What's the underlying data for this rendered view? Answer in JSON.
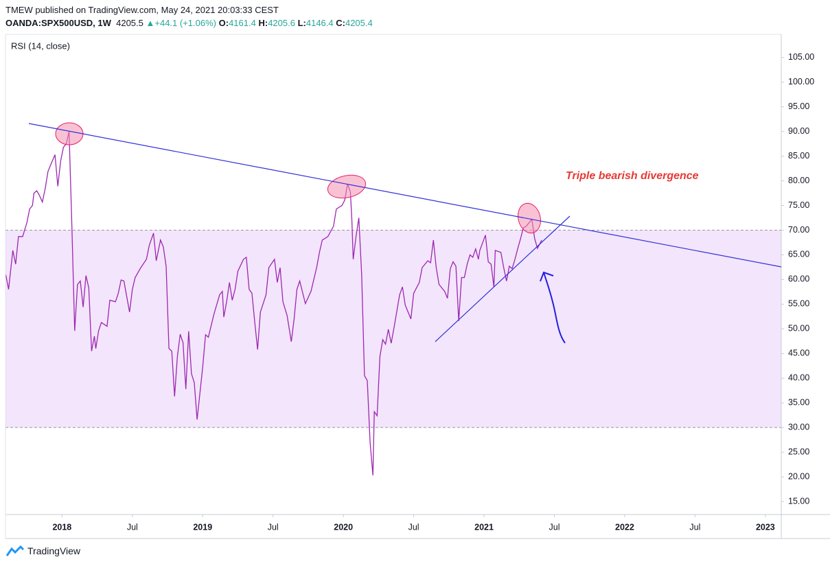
{
  "header": {
    "publisher": "TMEW published on TradingView.com, May 24, 2021 20:03:33 CEST",
    "symbol": "OANDA:SPX500USD, 1W",
    "last": "4205.5",
    "change": "+44.1 (+1.06%)",
    "o_label": "O:",
    "o": "4161.4",
    "h_label": "H:",
    "h": "4205.6",
    "l_label": "L:",
    "l": "4146.4",
    "c_label": "C:",
    "c": "4205.4"
  },
  "footer": {
    "brand": "TradingView"
  },
  "chart_data": {
    "type": "line",
    "title": "RSI (14, close)",
    "annotation": "Triple bearish divergence",
    "x": [
      2017.6,
      2017.62,
      2017.65,
      2017.67,
      2017.69,
      2017.72,
      2017.75,
      2017.77,
      2017.79,
      2017.8,
      2017.82,
      2017.84,
      2017.86,
      2017.88,
      2017.9,
      2017.92,
      2017.95,
      2017.97,
      2017.99,
      2018.01,
      2018.03,
      2018.05,
      2018.07,
      2018.09,
      2018.11,
      2018.13,
      2018.15,
      2018.17,
      2018.19,
      2018.21,
      2018.23,
      2018.24,
      2018.26,
      2018.28,
      2018.32,
      2018.34,
      2018.38,
      2018.4,
      2018.42,
      2018.44,
      2018.48,
      2018.5,
      2018.52,
      2018.56,
      2018.6,
      2018.62,
      2018.65,
      2018.67,
      2018.7,
      2018.72,
      2018.74,
      2018.76,
      2018.78,
      2018.8,
      2018.82,
      2018.84,
      2018.86,
      2018.88,
      2018.9,
      2018.92,
      2018.94,
      2018.96,
      2019.0,
      2019.02,
      2019.04,
      2019.08,
      2019.12,
      2019.14,
      2019.15,
      2019.17,
      2019.19,
      2019.21,
      2019.23,
      2019.25,
      2019.29,
      2019.31,
      2019.33,
      2019.35,
      2019.37,
      2019.39,
      2019.41,
      2019.45,
      2019.47,
      2019.51,
      2019.53,
      2019.55,
      2019.57,
      2019.6,
      2019.63,
      2019.65,
      2019.67,
      2019.69,
      2019.73,
      2019.77,
      2019.81,
      2019.83,
      2019.85,
      2019.89,
      2019.93,
      2019.95,
      2019.99,
      2020.01,
      2020.03,
      2020.05,
      2020.06,
      2020.07,
      2020.09,
      2020.11,
      2020.13,
      2020.15,
      2020.17,
      2020.19,
      2020.21,
      2020.22,
      2020.24,
      2020.26,
      2020.28,
      2020.3,
      2020.32,
      2020.34,
      2020.36,
      2020.4,
      2020.42,
      2020.44,
      2020.48,
      2020.5,
      2020.54,
      2020.56,
      2020.6,
      2020.62,
      2020.64,
      2020.66,
      2020.68,
      2020.72,
      2020.74,
      2020.76,
      2020.78,
      2020.8,
      2020.82,
      2020.84,
      2020.86,
      2020.88,
      2020.9,
      2020.92,
      2020.94,
      2020.96,
      2020.97,
      2021.01,
      2021.03,
      2021.05,
      2021.07,
      2021.08,
      2021.12,
      2021.14,
      2021.16,
      2021.18,
      2021.2,
      2021.22,
      2021.24,
      2021.26,
      2021.28,
      2021.3,
      2021.32,
      2021.34,
      2021.36,
      2021.38,
      2021.41
    ],
    "series": [
      {
        "name": "RSI",
        "color": "#9c27b0",
        "values": [
          61.0,
          58.0,
          65.9,
          63.1,
          68.7,
          68.7,
          71.5,
          74.3,
          75.0,
          77.5,
          78.0,
          77.0,
          75.7,
          78.4,
          81.9,
          83.3,
          85.3,
          78.9,
          84.0,
          86.8,
          87.5,
          90.0,
          70.8,
          49.6,
          59.0,
          59.7,
          54.4,
          60.8,
          58.3,
          45.5,
          48.5,
          46.0,
          49.6,
          51.3,
          50.5,
          55.8,
          55.5,
          57.2,
          59.9,
          59.7,
          53.4,
          58.0,
          60.4,
          62.4,
          64.1,
          66.9,
          69.4,
          63.8,
          68.0,
          66.6,
          62.7,
          46.0,
          45.5,
          36.3,
          44.4,
          48.9,
          47.2,
          37.8,
          49.5,
          40.9,
          39.1,
          31.6,
          42.3,
          48.8,
          48.3,
          53.0,
          56.9,
          57.6,
          52.4,
          55.5,
          59.4,
          55.8,
          58.0,
          61.7,
          64.1,
          64.5,
          58.0,
          57.2,
          51.3,
          45.8,
          53.4,
          56.9,
          62.4,
          64.1,
          59.4,
          62.4,
          55.5,
          52.7,
          47.4,
          52.0,
          58.0,
          59.7,
          55.1,
          57.6,
          62.4,
          65.5,
          68.0,
          68.7,
          70.8,
          74.3,
          75.0,
          76.1,
          79.4,
          77.7,
          72.2,
          64.1,
          68.7,
          72.5,
          61.0,
          40.5,
          39.5,
          27.0,
          20.3,
          33.2,
          32.4,
          44.4,
          47.8,
          46.9,
          49.9,
          47.1,
          50.2,
          56.9,
          58.5,
          54.8,
          52.0,
          57.2,
          59.4,
          62.4,
          63.8,
          63.4,
          68.0,
          62.4,
          59.0,
          57.6,
          56.2,
          62.2,
          63.6,
          62.7,
          51.6,
          60.4,
          60.4,
          63.1,
          65.0,
          64.5,
          66.2,
          64.1,
          65.9,
          69.0,
          63.6,
          63.1,
          58.5,
          65.9,
          65.5,
          62.4,
          59.7,
          62.7,
          62.2,
          64.1,
          66.3,
          68.3,
          70.5,
          70.8,
          71.5,
          72.2,
          68.3,
          66.3,
          68.0
        ]
      }
    ],
    "band": [
      30,
      70
    ],
    "band_color": "#f3e5fb",
    "xlim": [
      2017.598,
      2023.113
    ],
    "ylim": [
      12.36,
      109.7
    ],
    "xticks": [
      {
        "value": 2018,
        "label": "2018"
      },
      {
        "value": 2018.5,
        "label": "Jul"
      },
      {
        "value": 2019,
        "label": "2019"
      },
      {
        "value": 2019.5,
        "label": "Jul"
      },
      {
        "value": 2020,
        "label": "2020"
      },
      {
        "value": 2020.5,
        "label": "Jul"
      },
      {
        "value": 2021,
        "label": "2021"
      },
      {
        "value": 2021.5,
        "label": "Jul"
      },
      {
        "value": 2022,
        "label": "2022"
      },
      {
        "value": 2022.5,
        "label": "Jul"
      },
      {
        "value": 2023,
        "label": "2023"
      }
    ],
    "yticks": [
      {
        "value": 15,
        "label": "15.00"
      },
      {
        "value": 20,
        "label": "20.00"
      },
      {
        "value": 25,
        "label": "25.00"
      },
      {
        "value": 30,
        "label": "30.00"
      },
      {
        "value": 35,
        "label": "35.00"
      },
      {
        "value": 40,
        "label": "40.00"
      },
      {
        "value": 45,
        "label": "45.00"
      },
      {
        "value": 50,
        "label": "50.00"
      },
      {
        "value": 55,
        "label": "55.00"
      },
      {
        "value": 60,
        "label": "60.00"
      },
      {
        "value": 65,
        "label": "65.00"
      },
      {
        "value": 70,
        "label": "70.00"
      },
      {
        "value": 75,
        "label": "75.00"
      },
      {
        "value": 80,
        "label": "80.00"
      },
      {
        "value": 85,
        "label": "85.00"
      },
      {
        "value": 90,
        "label": "90.00"
      },
      {
        "value": 95,
        "label": "95.00"
      },
      {
        "value": 100,
        "label": "100.00"
      },
      {
        "value": 105,
        "label": "105.00"
      }
    ],
    "grid": false
  }
}
